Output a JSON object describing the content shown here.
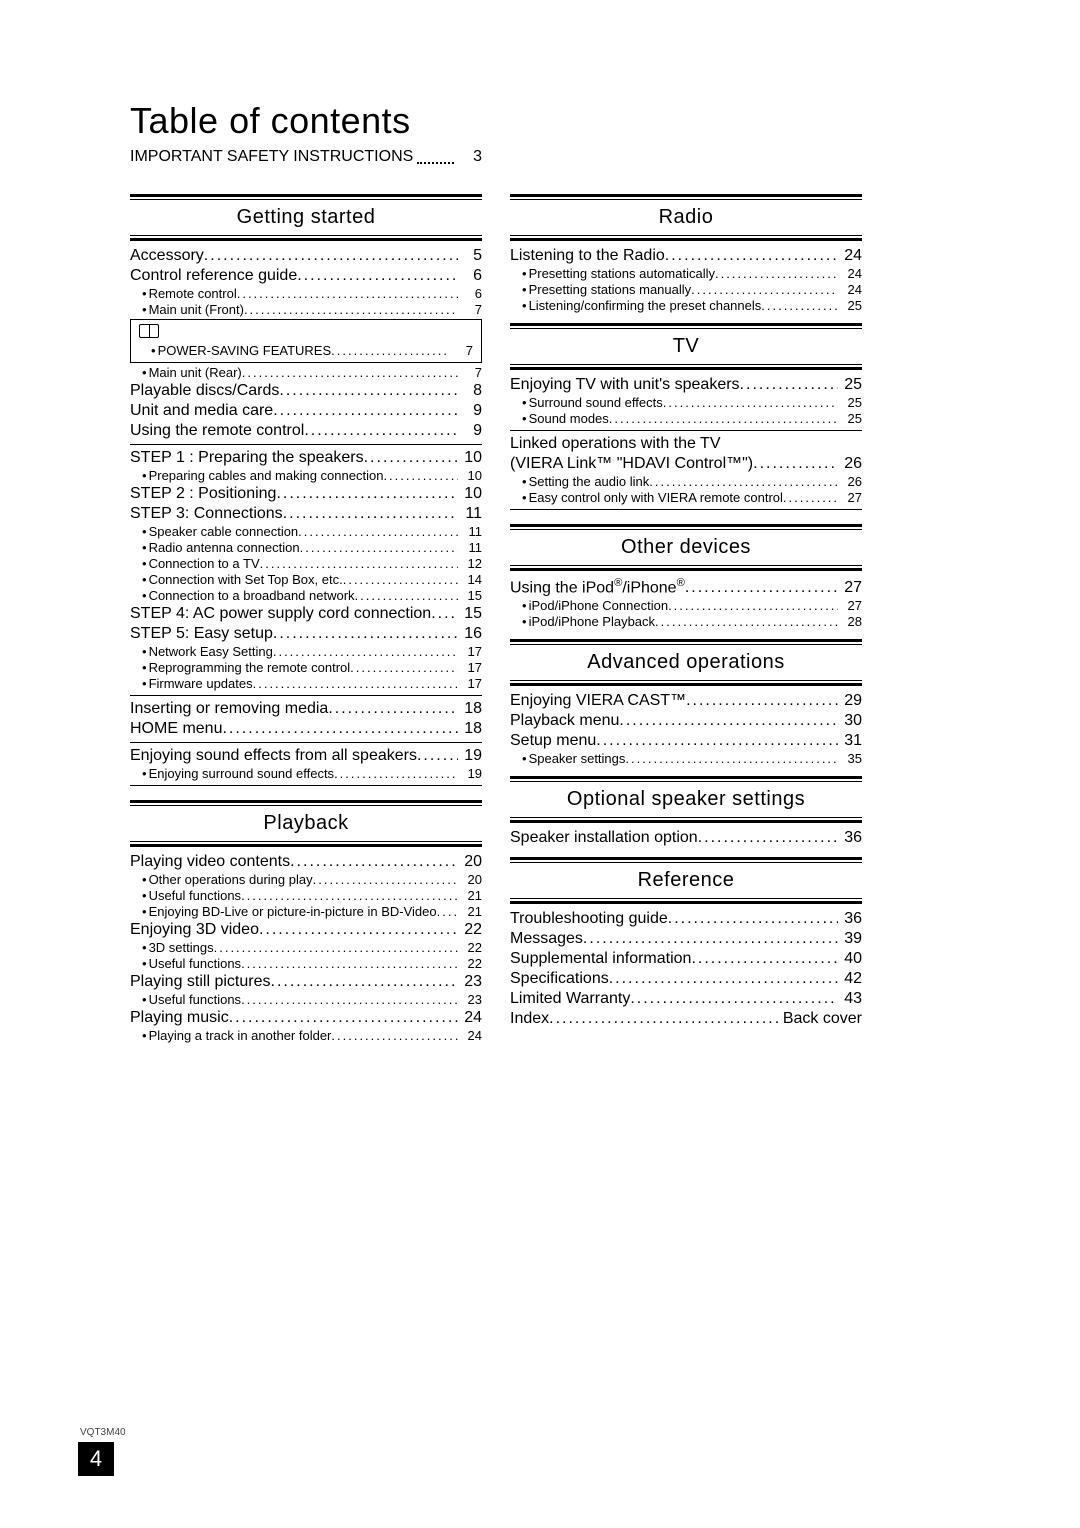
{
  "title": "Table of contents",
  "doc_code": "VQT3M40",
  "page_number": "4",
  "important_safety": {
    "label": "IMPORTANT SAFETY INSTRUCTIONS",
    "page": "3"
  },
  "dots_long": "...........................................................................................",
  "sections": {
    "getting_started": {
      "title": "Getting started",
      "items": [
        {
          "type": "entry",
          "label": "Accessory",
          "page": "5"
        },
        {
          "type": "entry",
          "label": "Control reference guide",
          "page": "6"
        },
        {
          "type": "sub",
          "label": "Remote control",
          "page": "6"
        },
        {
          "type": "sub",
          "label": "Main unit (Front)",
          "page": "7"
        },
        {
          "type": "boxstart"
        },
        {
          "type": "sub",
          "label": "POWER-SAVING FEATURES",
          "page": "7"
        },
        {
          "type": "boxend"
        },
        {
          "type": "sub",
          "label": "Main unit (Rear)",
          "page": "7"
        },
        {
          "type": "entry",
          "label": "Playable discs/Cards",
          "page": "8"
        },
        {
          "type": "entry",
          "label": "Unit and media care",
          "page": "9"
        },
        {
          "type": "entry",
          "label": "Using the remote control",
          "page": "9"
        },
        {
          "type": "divider"
        },
        {
          "type": "entry",
          "label": "STEP 1 : Preparing the speakers",
          "page": "10"
        },
        {
          "type": "sub",
          "label": "Preparing cables and making connection",
          "page": "10"
        },
        {
          "type": "entry",
          "label": "STEP 2 : Positioning",
          "page": "10"
        },
        {
          "type": "entry",
          "label": "STEP 3: Connections",
          "page": "11"
        },
        {
          "type": "sub",
          "label": "Speaker cable connection",
          "page": "11"
        },
        {
          "type": "sub",
          "label": "Radio antenna connection",
          "page": "11"
        },
        {
          "type": "sub",
          "label": "Connection to a TV",
          "page": "12"
        },
        {
          "type": "sub",
          "label": "Connection with Set Top Box, etc.",
          "page": "14"
        },
        {
          "type": "sub",
          "label": "Connection to a broadband network",
          "page": "15"
        },
        {
          "type": "entry",
          "label": "STEP 4: AC power supply cord connection",
          "page": "15"
        },
        {
          "type": "entry",
          "label": "STEP 5: Easy setup",
          "page": "16"
        },
        {
          "type": "sub",
          "label": "Network Easy Setting",
          "page": "17"
        },
        {
          "type": "sub",
          "label": "Reprogramming the remote control",
          "page": "17"
        },
        {
          "type": "sub",
          "label": "Firmware updates",
          "page": "17"
        },
        {
          "type": "divider"
        },
        {
          "type": "entry",
          "label": "Inserting or removing media",
          "page": "18"
        },
        {
          "type": "entry",
          "label": "HOME menu",
          "page": "18"
        },
        {
          "type": "divider"
        },
        {
          "type": "entry",
          "label": "Enjoying sound effects from all speakers",
          "page": "19"
        },
        {
          "type": "sub",
          "label": "Enjoying surround sound effects",
          "page": "19"
        },
        {
          "type": "divider"
        }
      ]
    },
    "playback": {
      "title": "Playback",
      "items": [
        {
          "type": "entry",
          "label": "Playing video contents",
          "page": "20"
        },
        {
          "type": "sub",
          "label": "Other operations during play",
          "page": "20"
        },
        {
          "type": "sub",
          "label": "Useful functions",
          "page": "21"
        },
        {
          "type": "sub",
          "label": "Enjoying BD-Live or picture-in-picture in BD-Video",
          "page": "21"
        },
        {
          "type": "entry",
          "label": "Enjoying 3D video",
          "page": "22"
        },
        {
          "type": "sub",
          "label": "3D settings",
          "page": "22"
        },
        {
          "type": "sub",
          "label": "Useful functions",
          "page": "22"
        },
        {
          "type": "entry",
          "label": "Playing still pictures",
          "page": "23"
        },
        {
          "type": "sub",
          "label": "Useful functions",
          "page": "23"
        },
        {
          "type": "entry",
          "label": "Playing music",
          "page": "24"
        },
        {
          "type": "sub",
          "label": "Playing a track in another folder",
          "page": "24"
        }
      ]
    },
    "radio": {
      "title": "Radio",
      "items": [
        {
          "type": "entry",
          "label": "Listening to the Radio",
          "page": "24"
        },
        {
          "type": "sub",
          "label": "Presetting stations automatically",
          "page": "24"
        },
        {
          "type": "sub",
          "label": "Presetting stations manually",
          "page": "24"
        },
        {
          "type": "sub",
          "label": "Listening/confirming the preset channels",
          "page": "25"
        }
      ]
    },
    "tv": {
      "title": "TV",
      "items": [
        {
          "type": "entry",
          "label": "Enjoying TV with unit's speakers",
          "page": "25"
        },
        {
          "type": "sub",
          "label": "Surround sound effects",
          "page": "25"
        },
        {
          "type": "sub",
          "label": "Sound modes",
          "page": "25"
        },
        {
          "type": "divider"
        },
        {
          "type": "entry",
          "label": "Linked operations with the TV",
          "nopage": true
        },
        {
          "type": "entry",
          "label": "(VIERA Link™ \"HDAVI Control™\")",
          "page": "26"
        },
        {
          "type": "sub",
          "label": "Setting the audio link",
          "page": "26"
        },
        {
          "type": "sub",
          "label": "Easy control only with VIERA remote control",
          "page": "27"
        },
        {
          "type": "divider"
        }
      ]
    },
    "other_devices": {
      "title": "Other devices",
      "items": [
        {
          "type": "entry",
          "html": true,
          "label": "Using the iPod<sup>®</sup>/iPhone<sup>®</sup>",
          "page": "27"
        },
        {
          "type": "sub",
          "label": "iPod/iPhone Connection",
          "page": "27"
        },
        {
          "type": "sub",
          "label": "iPod/iPhone Playback",
          "page": "28"
        }
      ]
    },
    "advanced": {
      "title": "Advanced operations",
      "items": [
        {
          "type": "entry",
          "label": "Enjoying VIERA CAST™",
          "page": "29"
        },
        {
          "type": "entry",
          "label": "Playback menu",
          "page": "30"
        },
        {
          "type": "entry",
          "label": "Setup menu",
          "page": "31"
        },
        {
          "type": "sub",
          "label": "Speaker settings",
          "page": "35"
        }
      ]
    },
    "optional": {
      "title": "Optional speaker settings",
      "items": [
        {
          "type": "entry",
          "label": "Speaker installation option",
          "page": "36"
        }
      ]
    },
    "reference": {
      "title": "Reference",
      "items": [
        {
          "type": "entry",
          "label": "Troubleshooting guide",
          "page": "36"
        },
        {
          "type": "entry",
          "label": "Messages",
          "page": "39"
        },
        {
          "type": "entry",
          "label": "Supplemental information",
          "page": "40"
        },
        {
          "type": "entry",
          "label": "Specifications",
          "page": "42"
        },
        {
          "type": "entry",
          "label": "Limited Warranty",
          "page": "43"
        },
        {
          "type": "entry",
          "label": "Index",
          "page": "Back cover"
        }
      ]
    }
  }
}
